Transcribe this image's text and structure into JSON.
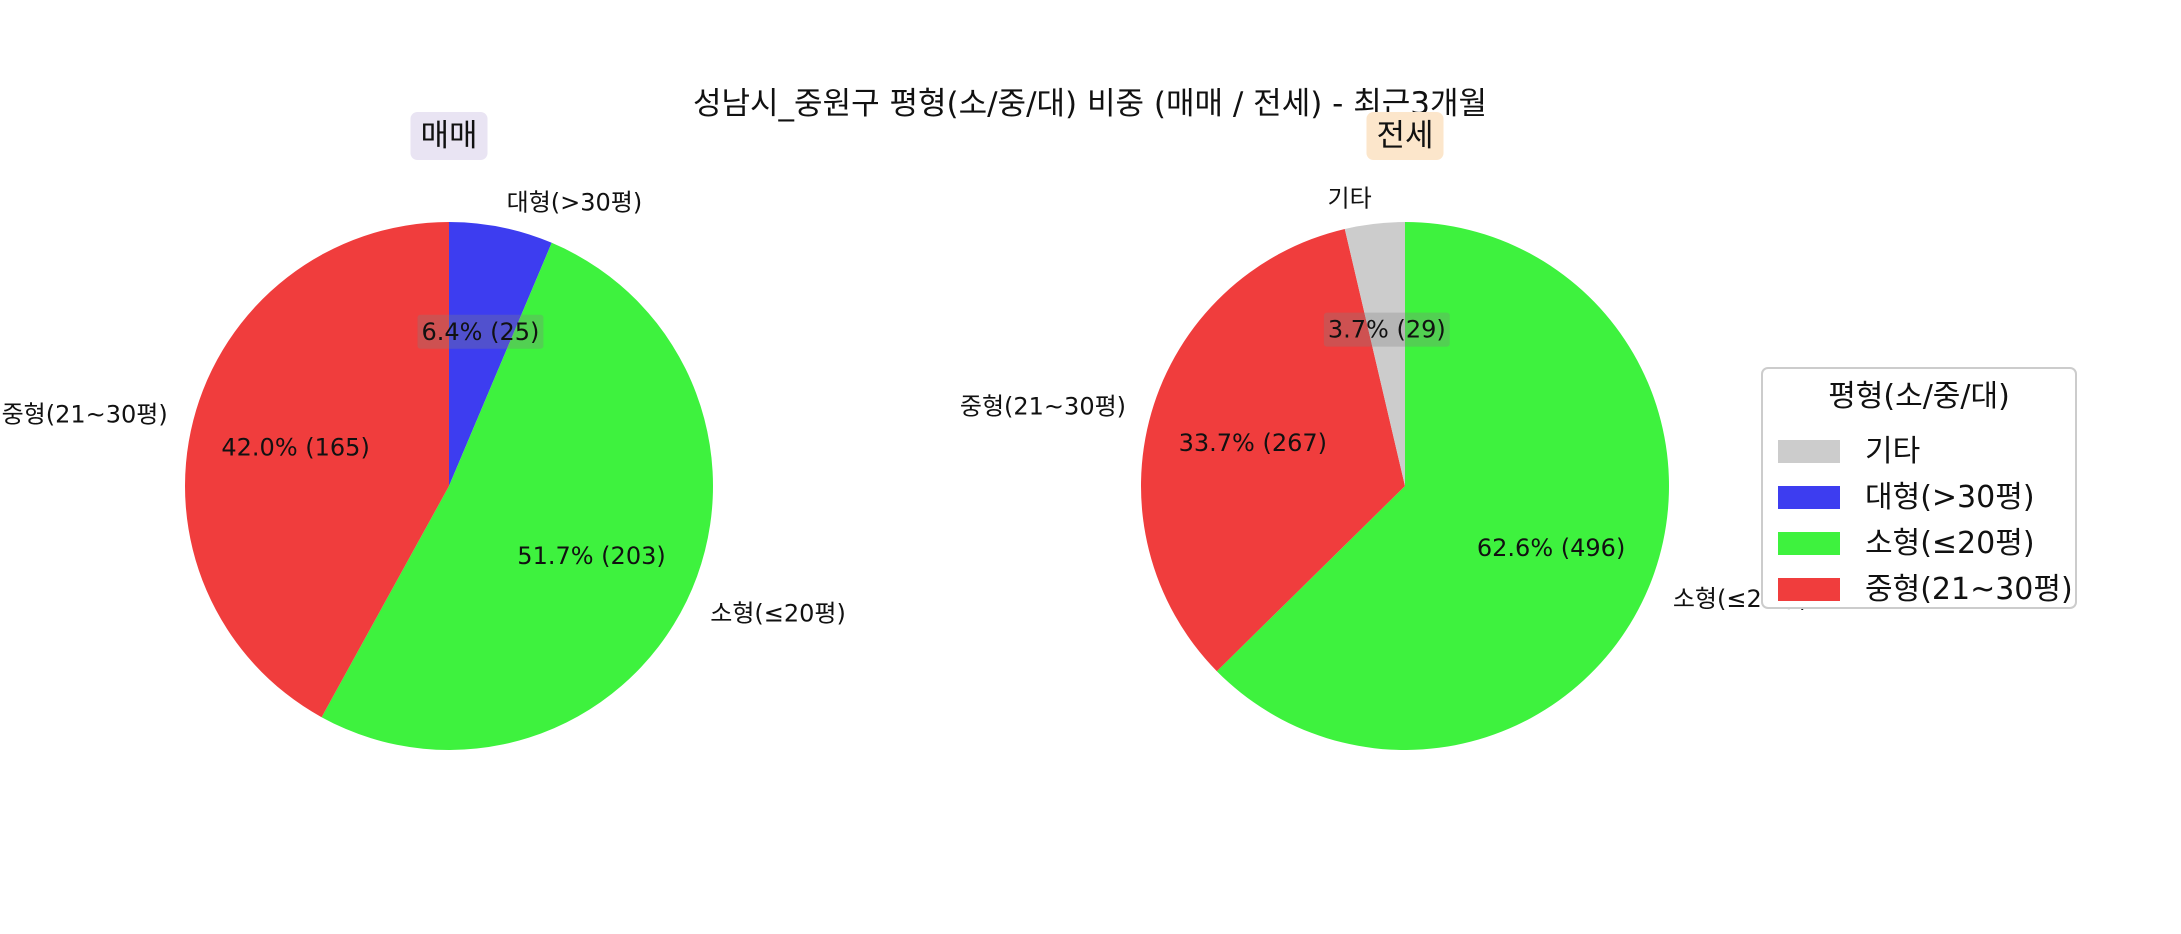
{
  "chart_data": {
    "title": "성남시_중원구 평형(소/중/대) 비중 (매매 / 전세) - 최근3개월",
    "charts": [
      {
        "type": "pie",
        "subtitle": "매매",
        "subtitle_bg": "#e9e4f3",
        "slices": [
          {
            "label": "대형(>30평)",
            "count": 25,
            "percent": "6.4%",
            "color": "#3d3df0"
          },
          {
            "label": "소형(≤20평)",
            "count": 203,
            "percent": "51.7%",
            "color": "#3ef23e"
          },
          {
            "label": "중형(21~30평)",
            "count": 165,
            "percent": "42.0%",
            "color": "#f03d3d"
          }
        ]
      },
      {
        "type": "pie",
        "subtitle": "전세",
        "subtitle_bg": "#fce6cb",
        "slices": [
          {
            "label": "소형(≤20평)",
            "count": 496,
            "percent": "62.6%",
            "color": "#3ef23e"
          },
          {
            "label": "중형(21~30평)",
            "count": 267,
            "percent": "33.7%",
            "color": "#f03d3d"
          },
          {
            "label": "기타",
            "count": 29,
            "percent": "3.7%",
            "color": "#cccccc"
          }
        ]
      }
    ],
    "legend": {
      "title": "평형(소/중/대)",
      "placement": "right",
      "entries": [
        {
          "label": "기타",
          "color": "#cccccc"
        },
        {
          "label": "대형(>30평)",
          "color": "#3d3df0"
        },
        {
          "label": "소형(≤20평)",
          "color": "#3ef23e"
        },
        {
          "label": "중형(21~30평)",
          "color": "#f03d3d"
        }
      ]
    }
  }
}
